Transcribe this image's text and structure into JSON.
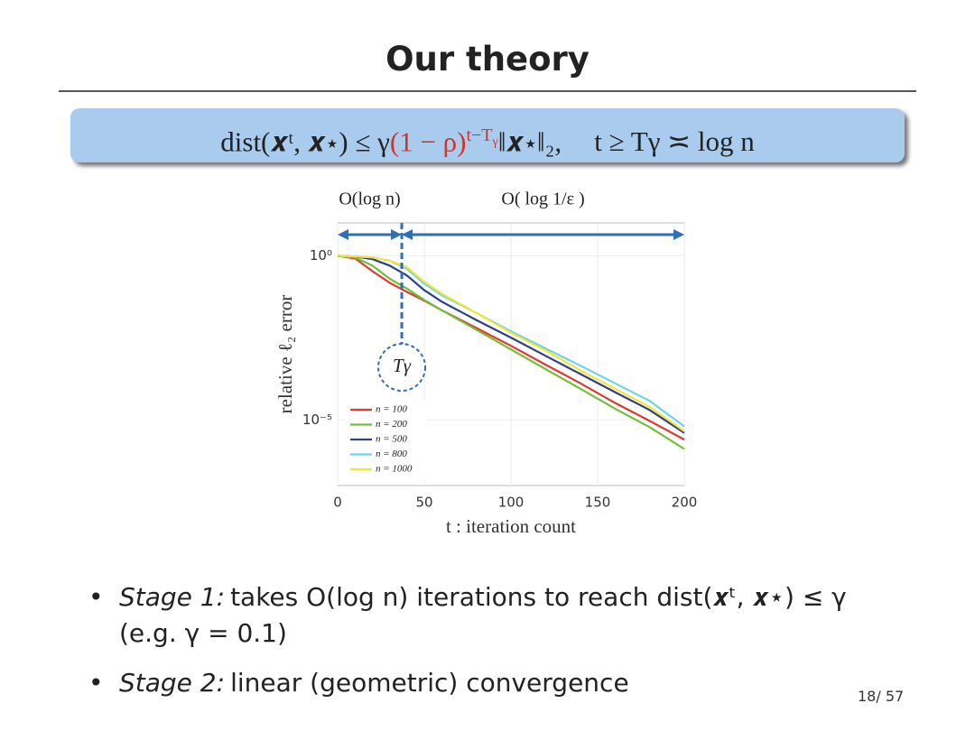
{
  "header": {
    "title": "Our theory"
  },
  "formula": {
    "left": "dist(𝒙ᵗ, 𝒙⋆) ≤ γ",
    "red": "(1 − ρ)",
    "exponent": "t−T",
    "exponent_sub": "γ",
    "rest": "‖𝒙⋆‖₂,",
    "condition": "t ≥ Tγ ≍ log n"
  },
  "chart_data": {
    "type": "line",
    "log_y": true,
    "grid": true,
    "legend": "lower left",
    "xlabel": "t : iteration count",
    "ylabel": "relative ℓ₂ error",
    "x": [
      0,
      10,
      20,
      30,
      40,
      50,
      60,
      80,
      100,
      120,
      140,
      160,
      180,
      200
    ],
    "series": [
      {
        "name": "n = 100",
        "color": "#e03a2f",
        "values": [
          1,
          0.83,
          0.34,
          0.15,
          0.079,
          0.043,
          0.022,
          0.0063,
          0.0018,
          0.00048,
          0.00013,
          3.3e-05,
          9.3e-06,
          2.5e-06
        ]
      },
      {
        "name": "n = 200",
        "color": "#6fbf3a",
        "values": [
          1,
          0.89,
          0.5,
          0.2,
          0.1,
          0.045,
          0.022,
          0.0056,
          0.0014,
          0.00035,
          8.9e-05,
          2.2e-05,
          6e-06,
          1.3e-06
        ]
      },
      {
        "name": "n = 500",
        "color": "#2f3f8f",
        "values": [
          1,
          0.95,
          0.79,
          0.5,
          0.25,
          0.089,
          0.04,
          0.011,
          0.0032,
          0.00089,
          0.00025,
          7e-05,
          2e-05,
          4e-06
        ]
      },
      {
        "name": "n = 800",
        "color": "#6fd3e8",
        "values": [
          1,
          0.95,
          0.89,
          0.71,
          0.4,
          0.14,
          0.063,
          0.018,
          0.005,
          0.0015,
          0.00045,
          0.00013,
          3.8e-05,
          6.3e-06
        ]
      },
      {
        "name": "n = 1000",
        "color": "#f0e63a",
        "values": [
          1,
          0.95,
          0.89,
          0.71,
          0.45,
          0.16,
          0.071,
          0.018,
          0.0045,
          0.0013,
          0.00032,
          8.9e-05,
          2.5e-05,
          4.5e-06
        ]
      }
    ],
    "xlim": [
      0,
      200
    ],
    "xticks": [
      0,
      50,
      100,
      150,
      200
    ],
    "ylim": [
      1e-07,
      10
    ],
    "yticks": [
      {
        "value": 1,
        "label": "10⁰"
      },
      {
        "value": 1e-05,
        "label": "10⁻⁵"
      }
    ],
    "annotations": [
      {
        "text": "Tγ",
        "x": 37
      }
    ],
    "stage_labels": [
      "O(log n)",
      "O( log 1/ε )"
    ]
  },
  "bullets": [
    {
      "label": "Stage 1:",
      "text": "takes O(log n) iterations to reach dist(𝒙ᵗ, 𝒙⋆) ≤ γ (e.g. γ = 0.1)"
    },
    {
      "label": "Stage 2:",
      "text": "linear (geometric) convergence"
    }
  ],
  "footer": {
    "page": "18/ 57"
  }
}
